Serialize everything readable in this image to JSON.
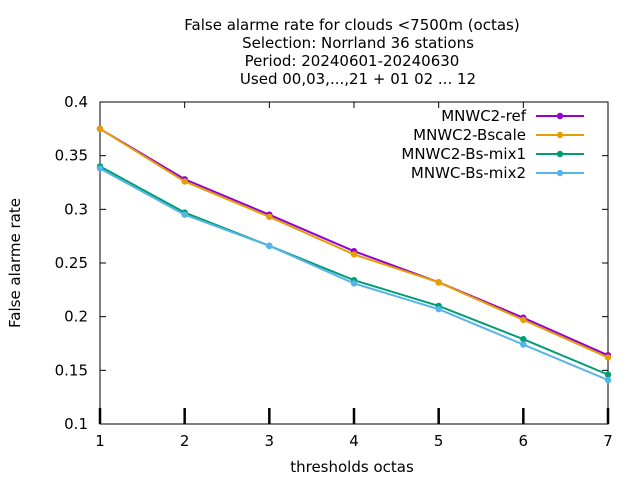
{
  "chart_data": {
    "type": "line",
    "title_lines": [
      "False alarme rate  for clouds <7500m (octas)",
      "Selection: Norrland     36 stations",
      "Period: 20240601-20240630",
      "Used 00,03,...,21 + 01 02 ... 12"
    ],
    "xlabel": "thresholds octas",
    "ylabel": "False alarme rate",
    "x": [
      1,
      2,
      3,
      4,
      5,
      6,
      7
    ],
    "xlim": [
      1,
      7
    ],
    "ylim": [
      0.1,
      0.4
    ],
    "xticks": [
      "1",
      "2",
      "3",
      "4",
      "5",
      "6",
      "7"
    ],
    "yticks": [
      "0.1",
      "0.15",
      "0.2",
      "0.25",
      "0.3",
      "0.35",
      "0.4"
    ],
    "grid": false,
    "legend_position": "top-right",
    "series": [
      {
        "name": "MNWC2-ref",
        "color": "#9400d3",
        "values": [
          0.375,
          0.328,
          0.295,
          0.261,
          0.232,
          0.199,
          0.164
        ]
      },
      {
        "name": "MNWC2-Bscale",
        "color": "#e69f00",
        "values": [
          0.375,
          0.326,
          0.293,
          0.258,
          0.232,
          0.197,
          0.162
        ]
      },
      {
        "name": "MNWC2-Bs-mix1",
        "color": "#009e73",
        "values": [
          0.34,
          0.297,
          0.266,
          0.234,
          0.21,
          0.179,
          0.146
        ]
      },
      {
        "name": "MNWC-Bs-mix2",
        "color": "#56b4e9",
        "values": [
          0.338,
          0.295,
          0.266,
          0.231,
          0.207,
          0.174,
          0.141
        ]
      }
    ]
  }
}
